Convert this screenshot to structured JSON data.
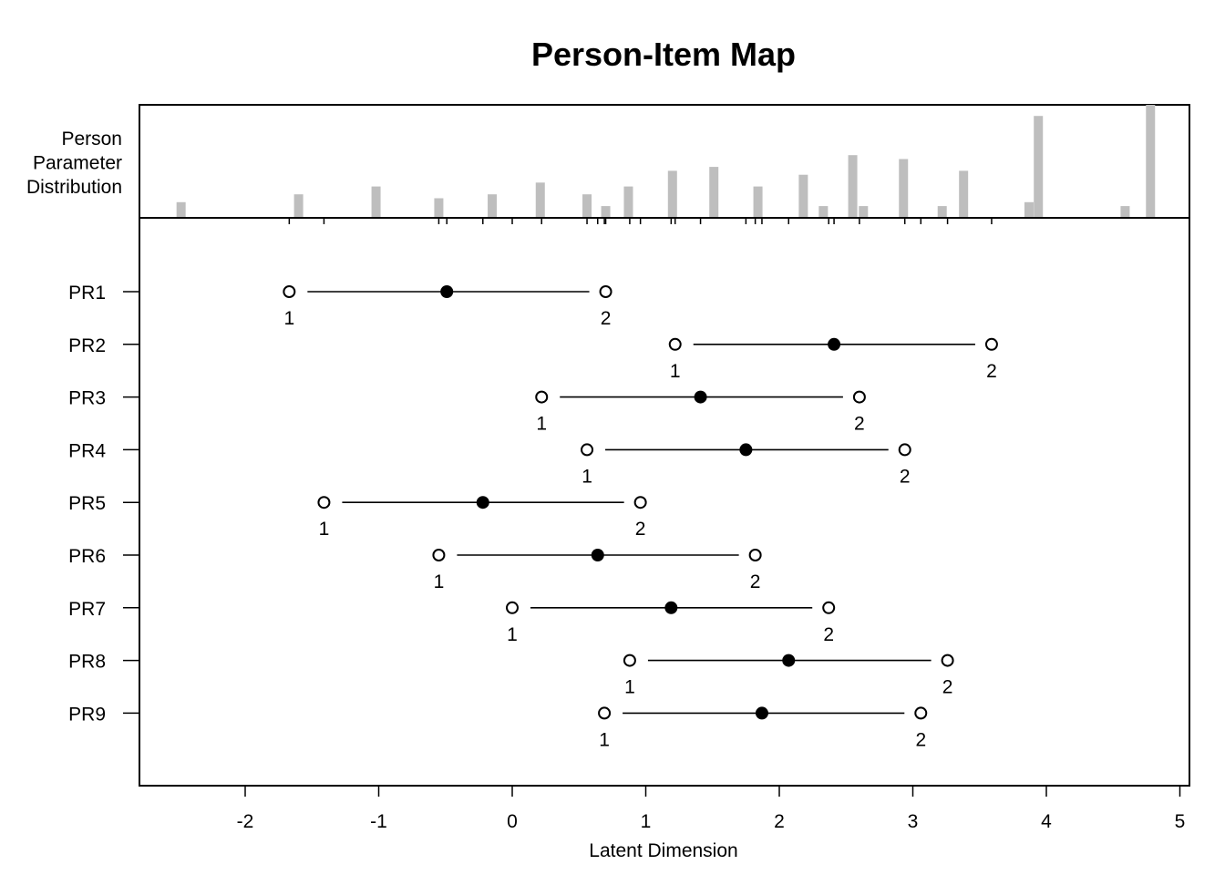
{
  "chart_data": {
    "type": "scatter",
    "title": "Person-Item Map",
    "xlabel": "Latent Dimension",
    "panel_label": [
      "Person",
      "Parameter",
      "Distribution"
    ],
    "xlim": [
      -2.8,
      5.05
    ],
    "x_ticks": [
      "-2",
      "-1",
      "0",
      "1",
      "2",
      "3",
      "4",
      "5"
    ],
    "x_tick_values": [
      -2,
      -1,
      0,
      1,
      2,
      3,
      4,
      5
    ],
    "items": [
      {
        "name": "PR1",
        "thresholds": [
          -1.67,
          0.7
        ],
        "location": -0.49,
        "labels": [
          "1",
          "2"
        ]
      },
      {
        "name": "PR2",
        "thresholds": [
          1.22,
          3.59
        ],
        "location": 2.41,
        "labels": [
          "1",
          "2"
        ]
      },
      {
        "name": "PR3",
        "thresholds": [
          0.22,
          2.6
        ],
        "location": 1.41,
        "labels": [
          "1",
          "2"
        ]
      },
      {
        "name": "PR4",
        "thresholds": [
          0.56,
          2.94
        ],
        "location": 1.75,
        "labels": [
          "1",
          "2"
        ]
      },
      {
        "name": "PR5",
        "thresholds": [
          -1.41,
          0.96
        ],
        "location": -0.22,
        "labels": [
          "1",
          "2"
        ]
      },
      {
        "name": "PR6",
        "thresholds": [
          -0.55,
          1.82
        ],
        "location": 0.64,
        "labels": [
          "1",
          "2"
        ]
      },
      {
        "name": "PR7",
        "thresholds": [
          0.0,
          2.37
        ],
        "location": 1.19,
        "labels": [
          "1",
          "2"
        ]
      },
      {
        "name": "PR8",
        "thresholds": [
          0.88,
          3.26
        ],
        "location": 2.07,
        "labels": [
          "1",
          "2"
        ]
      },
      {
        "name": "PR9",
        "thresholds": [
          0.69,
          3.06
        ],
        "location": 1.87,
        "labels": [
          "1",
          "2"
        ]
      }
    ],
    "person_distribution": {
      "x": [
        -2.48,
        -1.6,
        -1.02,
        -0.55,
        -0.15,
        0.21,
        0.56,
        0.7,
        0.87,
        1.2,
        1.51,
        1.84,
        2.18,
        2.33,
        2.55,
        2.63,
        2.93,
        3.22,
        3.38,
        3.87,
        3.94,
        4.59,
        4.78
      ],
      "y": [
        4,
        6,
        8,
        5,
        6,
        9,
        6,
        3,
        8,
        12,
        13,
        8,
        11,
        3,
        16,
        3,
        15,
        3,
        12,
        4,
        26,
        3,
        29
      ]
    },
    "item_location_ticks": [
      -1.67,
      -1.41,
      -0.55,
      -0.49,
      -0.22,
      0.0,
      0.22,
      0.56,
      0.64,
      0.69,
      0.7,
      0.88,
      0.96,
      1.19,
      1.22,
      1.41,
      1.75,
      1.82,
      1.87,
      2.07,
      2.37,
      2.41,
      2.6,
      2.94,
      3.06,
      3.26,
      3.59
    ],
    "colors": {
      "bars": "#bebebe",
      "points": "#000000",
      "axis": "#000000"
    }
  }
}
